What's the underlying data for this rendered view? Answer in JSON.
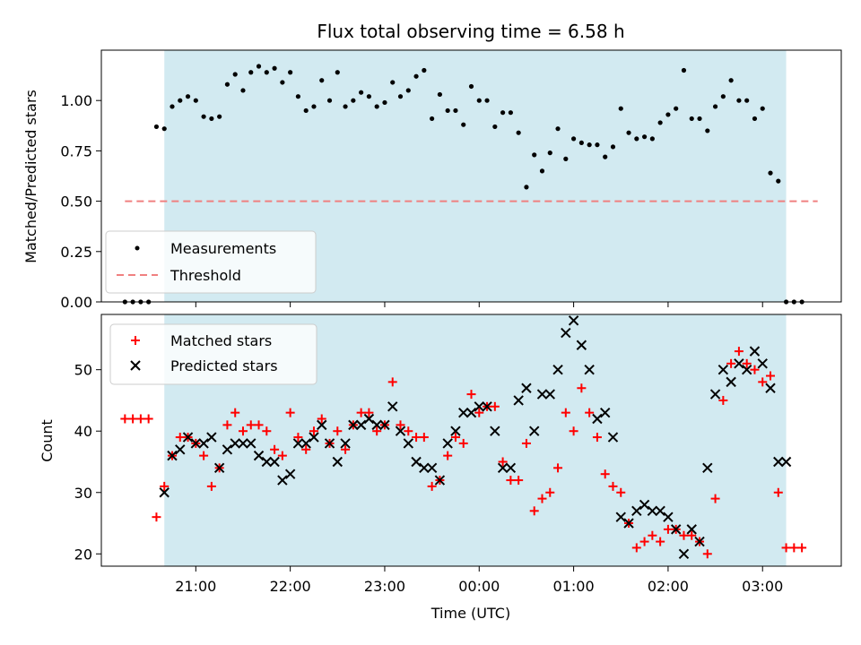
{
  "chart_data": [
    {
      "type": "scatter",
      "title": "Flux total observing time = 6.58 h",
      "ylabel": "Matched/Predicted stars",
      "xlabel": "",
      "xlim": [
        "2024-01-01T20:00",
        "2024-01-02T03:50"
      ],
      "ylim": [
        0,
        1.25
      ],
      "yticks": [
        "0.00",
        "0.25",
        "0.50",
        "0.75",
        "1.00"
      ],
      "xticks": [
        "21:00",
        "22:00",
        "23:00",
        "00:00",
        "01:00",
        "02:00",
        "03:00"
      ],
      "observing_window": [
        "2024-01-01T20:40",
        "2024-01-02T03:15"
      ],
      "window_color": "#add8e6",
      "legend_position": "lower-left",
      "legend": [
        "Measurements",
        "Threshold"
      ],
      "series": [
        {
          "name": "Measurements",
          "marker": "dot",
          "color": "#000000",
          "x": [
            "2024-01-01T20:15",
            "2024-01-01T20:20",
            "2024-01-01T20:25",
            "2024-01-01T20:30",
            "2024-01-01T20:35",
            "2024-01-01T20:40",
            "2024-01-01T20:45",
            "2024-01-01T20:50",
            "2024-01-01T20:55",
            "2024-01-01T21:00",
            "2024-01-01T21:05",
            "2024-01-01T21:10",
            "2024-01-01T21:15",
            "2024-01-01T21:20",
            "2024-01-01T21:25",
            "2024-01-01T21:30",
            "2024-01-01T21:35",
            "2024-01-01T21:40",
            "2024-01-01T21:45",
            "2024-01-01T21:50",
            "2024-01-01T21:55",
            "2024-01-01T22:00",
            "2024-01-01T22:05",
            "2024-01-01T22:10",
            "2024-01-01T22:15",
            "2024-01-01T22:20",
            "2024-01-01T22:25",
            "2024-01-01T22:30",
            "2024-01-01T22:35",
            "2024-01-01T22:40",
            "2024-01-01T22:45",
            "2024-01-01T22:50",
            "2024-01-01T22:55",
            "2024-01-01T23:00",
            "2024-01-01T23:05",
            "2024-01-01T23:10",
            "2024-01-01T23:15",
            "2024-01-01T23:20",
            "2024-01-01T23:25",
            "2024-01-01T23:30",
            "2024-01-01T23:35",
            "2024-01-01T23:40",
            "2024-01-01T23:45",
            "2024-01-01T23:50",
            "2024-01-01T23:55",
            "2024-01-02T00:00",
            "2024-01-02T00:05",
            "2024-01-02T00:10",
            "2024-01-02T00:15",
            "2024-01-02T00:20",
            "2024-01-02T00:25",
            "2024-01-02T00:30",
            "2024-01-02T00:35",
            "2024-01-02T00:40",
            "2024-01-02T00:45",
            "2024-01-02T00:50",
            "2024-01-02T00:55",
            "2024-01-02T01:00",
            "2024-01-02T01:05",
            "2024-01-02T01:10",
            "2024-01-02T01:15",
            "2024-01-02T01:20",
            "2024-01-02T01:25",
            "2024-01-02T01:30",
            "2024-01-02T01:35",
            "2024-01-02T01:40",
            "2024-01-02T01:45",
            "2024-01-02T01:50",
            "2024-01-02T01:55",
            "2024-01-02T02:00",
            "2024-01-02T02:05",
            "2024-01-02T02:10",
            "2024-01-02T02:15",
            "2024-01-02T02:20",
            "2024-01-02T02:25",
            "2024-01-02T02:30",
            "2024-01-02T02:35",
            "2024-01-02T02:40",
            "2024-01-02T02:45",
            "2024-01-02T02:50",
            "2024-01-02T02:55",
            "2024-01-02T03:00",
            "2024-01-02T03:05",
            "2024-01-02T03:10",
            "2024-01-02T03:15",
            "2024-01-02T03:20",
            "2024-01-02T03:25"
          ],
          "y": [
            0,
            0,
            0,
            0,
            0.87,
            0.86,
            0.97,
            1.0,
            1.02,
            1.0,
            0.92,
            0.91,
            0.92,
            1.08,
            1.13,
            1.05,
            1.14,
            1.17,
            1.14,
            1.16,
            1.09,
            1.14,
            1.02,
            0.95,
            0.97,
            1.1,
            1.0,
            1.14,
            0.97,
            1.0,
            1.04,
            1.02,
            0.97,
            0.99,
            1.09,
            1.02,
            1.05,
            1.12,
            1.15,
            0.91,
            1.03,
            0.95,
            0.95,
            0.88,
            1.07,
            1.0,
            1.0,
            0.87,
            0.94,
            0.94,
            0.84,
            0.57,
            0.73,
            0.65,
            0.74,
            0.86,
            0.71,
            0.81,
            0.79,
            0.78,
            0.78,
            0.72,
            0.77,
            0.96,
            0.84,
            0.81,
            0.82,
            0.81,
            0.89,
            0.93,
            0.96,
            1.15,
            0.91,
            0.91,
            0.85,
            0.97,
            1.02,
            1.1,
            1.0,
            1.0,
            0.91,
            0.96,
            0.64,
            0.6,
            0,
            0,
            0
          ]
        },
        {
          "name": "Threshold",
          "style": "dashed",
          "color": "#f08080",
          "x": [
            "2024-01-01T20:15",
            "2024-01-02T03:35"
          ],
          "y": [
            0.5,
            0.5
          ]
        }
      ]
    },
    {
      "type": "scatter",
      "title": "",
      "ylabel": "Count",
      "xlabel": "Time (UTC)",
      "xlim": [
        "2024-01-01T20:00",
        "2024-01-02T03:50"
      ],
      "ylim": [
        18,
        59
      ],
      "yticks": [
        "20",
        "30",
        "40",
        "50"
      ],
      "xticks": [
        "21:00",
        "22:00",
        "23:00",
        "00:00",
        "01:00",
        "02:00",
        "03:00"
      ],
      "observing_window": [
        "2024-01-01T20:40",
        "2024-01-02T03:15"
      ],
      "window_color": "#add8e6",
      "legend_position": "upper-left",
      "legend": [
        "Matched stars",
        "Predicted stars"
      ],
      "series": [
        {
          "name": "Matched stars",
          "marker": "plus",
          "color": "#ff0000",
          "x": [
            "2024-01-01T20:15",
            "2024-01-01T20:20",
            "2024-01-01T20:25",
            "2024-01-01T20:30",
            "2024-01-01T20:35",
            "2024-01-01T20:40",
            "2024-01-01T20:45",
            "2024-01-01T20:50",
            "2024-01-01T20:55",
            "2024-01-01T21:00",
            "2024-01-01T21:05",
            "2024-01-01T21:10",
            "2024-01-01T21:15",
            "2024-01-01T21:20",
            "2024-01-01T21:25",
            "2024-01-01T21:30",
            "2024-01-01T21:35",
            "2024-01-01T21:40",
            "2024-01-01T21:45",
            "2024-01-01T21:50",
            "2024-01-01T21:55",
            "2024-01-01T22:00",
            "2024-01-01T22:05",
            "2024-01-01T22:10",
            "2024-01-01T22:15",
            "2024-01-01T22:20",
            "2024-01-01T22:25",
            "2024-01-01T22:30",
            "2024-01-01T22:35",
            "2024-01-01T22:40",
            "2024-01-01T22:45",
            "2024-01-01T22:50",
            "2024-01-01T22:55",
            "2024-01-01T23:00",
            "2024-01-01T23:05",
            "2024-01-01T23:10",
            "2024-01-01T23:15",
            "2024-01-01T23:20",
            "2024-01-01T23:25",
            "2024-01-01T23:30",
            "2024-01-01T23:35",
            "2024-01-01T23:40",
            "2024-01-01T23:45",
            "2024-01-01T23:50",
            "2024-01-01T23:55",
            "2024-01-02T00:00",
            "2024-01-02T00:05",
            "2024-01-02T00:10",
            "2024-01-02T00:15",
            "2024-01-02T00:20",
            "2024-01-02T00:25",
            "2024-01-02T00:30",
            "2024-01-02T00:35",
            "2024-01-02T00:40",
            "2024-01-02T00:45",
            "2024-01-02T00:50",
            "2024-01-02T00:55",
            "2024-01-02T01:00",
            "2024-01-02T01:05",
            "2024-01-02T01:10",
            "2024-01-02T01:15",
            "2024-01-02T01:20",
            "2024-01-02T01:25",
            "2024-01-02T01:30",
            "2024-01-02T01:35",
            "2024-01-02T01:40",
            "2024-01-02T01:45",
            "2024-01-02T01:50",
            "2024-01-02T01:55",
            "2024-01-02T02:00",
            "2024-01-02T02:05",
            "2024-01-02T02:10",
            "2024-01-02T02:15",
            "2024-01-02T02:20",
            "2024-01-02T02:25",
            "2024-01-02T02:30",
            "2024-01-02T02:35",
            "2024-01-02T02:40",
            "2024-01-02T02:45",
            "2024-01-02T02:50",
            "2024-01-02T02:55",
            "2024-01-02T03:00",
            "2024-01-02T03:05",
            "2024-01-02T03:10",
            "2024-01-02T03:15",
            "2024-01-02T03:20",
            "2024-01-02T03:25"
          ],
          "y": [
            42,
            42,
            42,
            42,
            26,
            31,
            36,
            39,
            39,
            38,
            36,
            31,
            34,
            41,
            43,
            40,
            41,
            41,
            40,
            37,
            36,
            43,
            39,
            37,
            40,
            42,
            38,
            40,
            37,
            41,
            43,
            43,
            40,
            41,
            48,
            41,
            40,
            39,
            39,
            31,
            32,
            36,
            39,
            38,
            46,
            43,
            44,
            44,
            35,
            32,
            32,
            38,
            27,
            29,
            30,
            34,
            43,
            40,
            47,
            43,
            39,
            33,
            31,
            30,
            25,
            21,
            22,
            23,
            22,
            24,
            24,
            23,
            23,
            22,
            20,
            29,
            45,
            51,
            53,
            51,
            50,
            48,
            49,
            30,
            21,
            21,
            21
          ]
        },
        {
          "name": "Predicted stars",
          "marker": "x",
          "color": "#000000",
          "x": [
            "2024-01-01T20:40",
            "2024-01-01T20:45",
            "2024-01-01T20:50",
            "2024-01-01T20:55",
            "2024-01-01T21:00",
            "2024-01-01T21:05",
            "2024-01-01T21:10",
            "2024-01-01T21:15",
            "2024-01-01T21:20",
            "2024-01-01T21:25",
            "2024-01-01T21:30",
            "2024-01-01T21:35",
            "2024-01-01T21:40",
            "2024-01-01T21:45",
            "2024-01-01T21:50",
            "2024-01-01T21:55",
            "2024-01-01T22:00",
            "2024-01-01T22:05",
            "2024-01-01T22:10",
            "2024-01-01T22:15",
            "2024-01-01T22:20",
            "2024-01-01T22:25",
            "2024-01-01T22:30",
            "2024-01-01T22:35",
            "2024-01-01T22:40",
            "2024-01-01T22:45",
            "2024-01-01T22:50",
            "2024-01-01T22:55",
            "2024-01-01T23:00",
            "2024-01-01T23:05",
            "2024-01-01T23:10",
            "2024-01-01T23:15",
            "2024-01-01T23:20",
            "2024-01-01T23:25",
            "2024-01-01T23:30",
            "2024-01-01T23:35",
            "2024-01-01T23:40",
            "2024-01-01T23:45",
            "2024-01-01T23:50",
            "2024-01-01T23:55",
            "2024-01-02T00:00",
            "2024-01-02T00:05",
            "2024-01-02T00:10",
            "2024-01-02T00:15",
            "2024-01-02T00:20",
            "2024-01-02T00:25",
            "2024-01-02T00:30",
            "2024-01-02T00:35",
            "2024-01-02T00:40",
            "2024-01-02T00:45",
            "2024-01-02T00:50",
            "2024-01-02T00:55",
            "2024-01-02T01:00",
            "2024-01-02T01:05",
            "2024-01-02T01:10",
            "2024-01-02T01:15",
            "2024-01-02T01:20",
            "2024-01-02T01:25",
            "2024-01-02T01:30",
            "2024-01-02T01:35",
            "2024-01-02T01:40",
            "2024-01-02T01:45",
            "2024-01-02T01:50",
            "2024-01-02T01:55",
            "2024-01-02T02:00",
            "2024-01-02T02:05",
            "2024-01-02T02:10",
            "2024-01-02T02:15",
            "2024-01-02T02:20",
            "2024-01-02T02:25",
            "2024-01-02T02:30",
            "2024-01-02T02:35",
            "2024-01-02T02:40",
            "2024-01-02T02:45",
            "2024-01-02T02:50",
            "2024-01-02T02:55",
            "2024-01-02T03:00",
            "2024-01-02T03:05",
            "2024-01-02T03:10",
            "2024-01-02T03:15"
          ],
          "y": [
            30,
            36,
            37,
            39,
            38,
            38,
            39,
            34,
            37,
            38,
            38,
            38,
            36,
            35,
            35,
            32,
            33,
            38,
            38,
            39,
            41,
            38,
            35,
            38,
            41,
            41,
            42,
            41,
            41,
            44,
            40,
            38,
            35,
            34,
            34,
            32,
            38,
            40,
            43,
            43,
            44,
            44,
            40,
            34,
            34,
            45,
            47,
            40,
            46,
            46,
            50,
            56,
            58,
            54,
            50,
            42,
            43,
            39,
            26,
            25,
            27,
            28,
            27,
            27,
            26,
            24,
            20,
            24,
            22,
            34,
            46,
            50,
            48,
            51,
            50,
            53,
            51,
            47,
            35,
            35
          ]
        }
      ]
    }
  ]
}
